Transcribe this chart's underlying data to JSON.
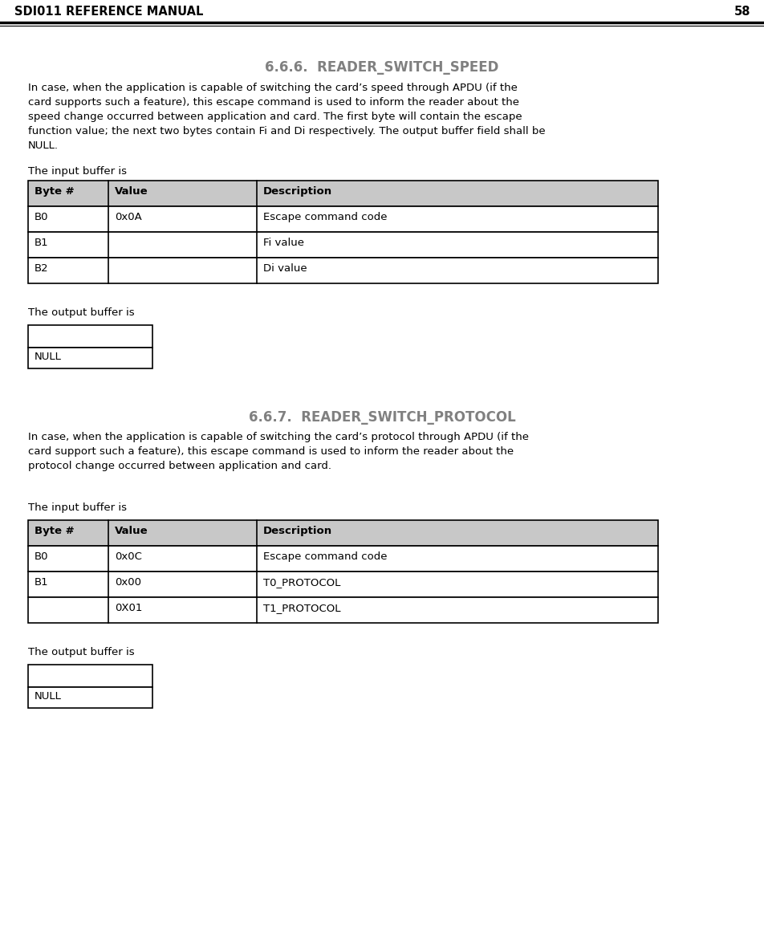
{
  "header_title": "SDI011 REFERENCE MANUAL",
  "header_page": "58",
  "section1_title": "6.6.6.  READER_SWITCH_SPEED",
  "section1_body": "In case, when the application is capable of switching the card’s speed through APDU (if the\ncard supports such a feature), this escape command is used to inform the reader about the\nspeed change occurred between application and card. The first byte will contain the escape\nfunction value; the next two bytes contain Fi and Di respectively. The output buffer field shall be\nNULL.",
  "section1_input_label": "The input buffer is",
  "table1_headers": [
    "Byte #",
    "Value",
    "Description"
  ],
  "table1_rows": [
    [
      "B0",
      "0x0A",
      "Escape command code"
    ],
    [
      "B1",
      "",
      "Fi value"
    ],
    [
      "B2",
      "",
      "Di value"
    ]
  ],
  "section1_output_label": "The output buffer is",
  "section1_null_label": "NULL",
  "section2_title": "6.6.7.  READER_SWITCH_PROTOCOL",
  "section2_body": "In case, when the application is capable of switching the card’s protocol through APDU (if the\ncard support such a feature), this escape command is used to inform the reader about the\nprotocol change occurred between application and card.",
  "section2_input_label": "The input buffer is",
  "table2_headers": [
    "Byte #",
    "Value",
    "Description"
  ],
  "table2_rows": [
    [
      "B0",
      "0x0C",
      "Escape command code"
    ],
    [
      "B1",
      "0x00",
      "T0_PROTOCOL"
    ],
    [
      "",
      "0X01",
      "T1_PROTOCOL"
    ]
  ],
  "section2_output_label": "The output buffer is",
  "section2_null_label": "NULL",
  "bg_color": "#ffffff",
  "text_color": "#000000",
  "header_text_color": "#000000",
  "table_header_bg": "#c8c8c8",
  "section_title_color": "#808080"
}
